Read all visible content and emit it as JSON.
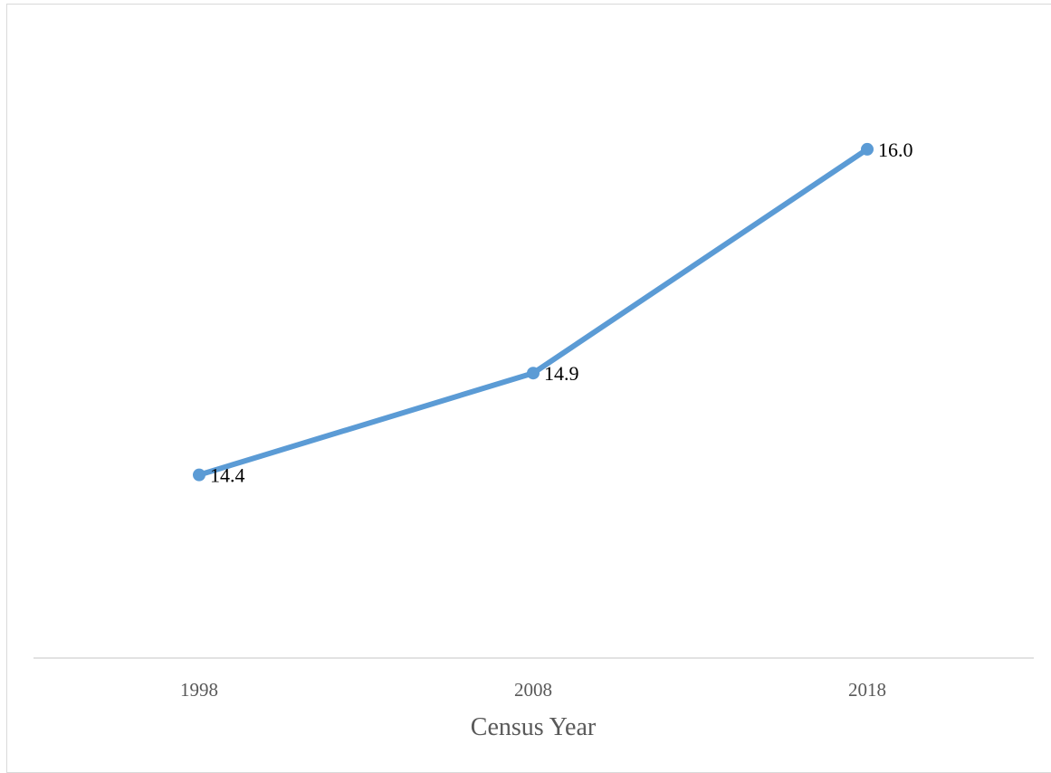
{
  "chart_data": {
    "type": "line",
    "title": "",
    "xlabel": "Census Year",
    "ylabel": "",
    "categories": [
      "1998",
      "2008",
      "2018"
    ],
    "series": [
      {
        "values": [
          14.4,
          14.9,
          16.0
        ],
        "data_labels": [
          "14.4",
          "14.9",
          "16.0"
        ],
        "color": "#5b9bd5",
        "markers": true
      }
    ],
    "ylim": [
      13.5,
      16.6
    ],
    "grid": false,
    "legend": "none",
    "y_axis_visible": false
  },
  "colors": {
    "series": "#5b9bd5",
    "axis_line": "#d9d9d9",
    "tick_text": "#595959",
    "label_text": "#000000"
  }
}
